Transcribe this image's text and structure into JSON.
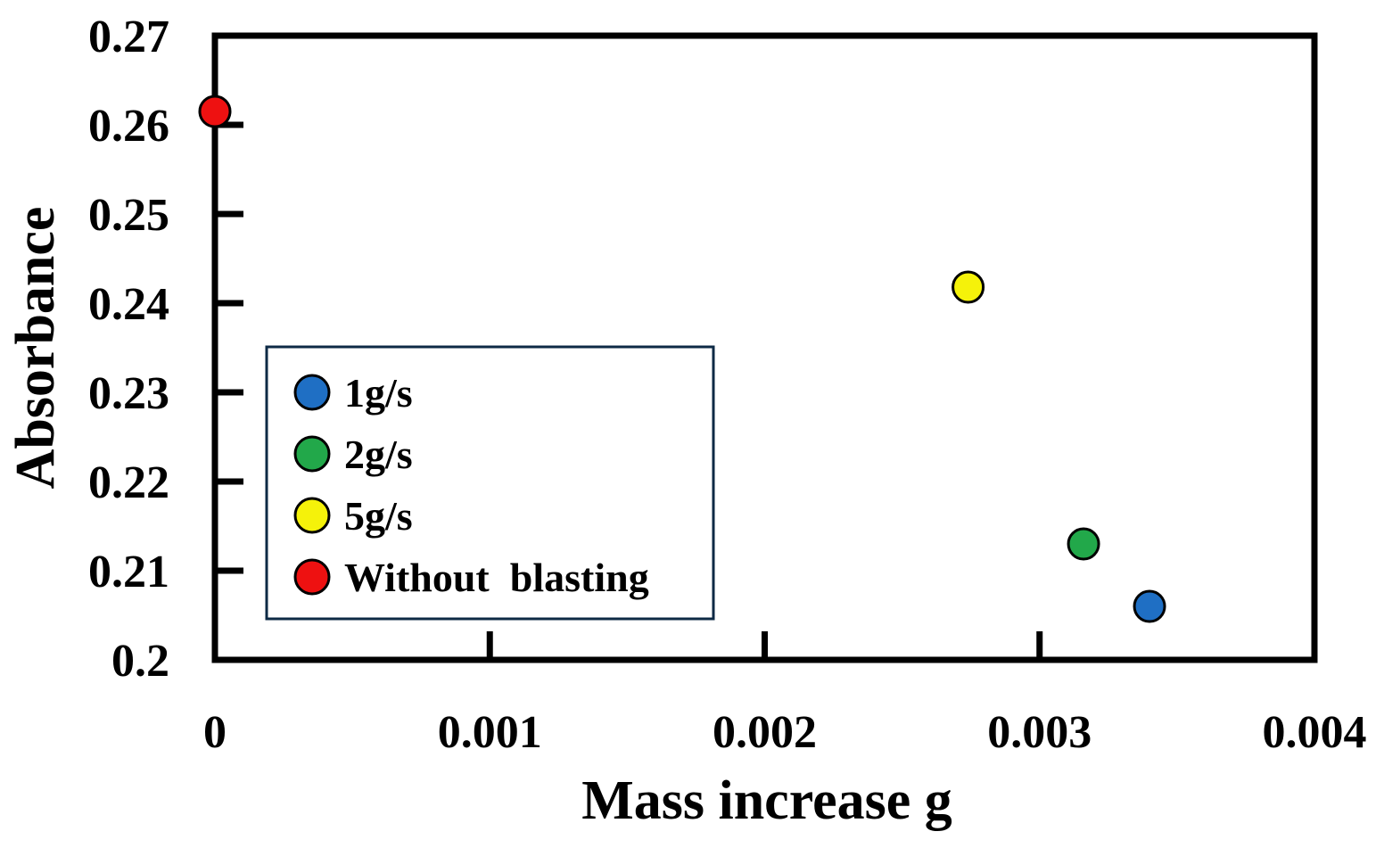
{
  "chart_data": {
    "type": "scatter",
    "xlabel": "Mass increase   g",
    "ylabel": "Absorbance",
    "xlim": [
      0,
      0.004
    ],
    "ylim": [
      0.2,
      0.27
    ],
    "x_ticks": [
      "0",
      "0.001",
      "0.002",
      "0.003",
      "0.004"
    ],
    "y_ticks": [
      "0.2",
      "0.21",
      "0.22",
      "0.23",
      "0.24",
      "0.25",
      "0.26",
      "0.27"
    ],
    "legend_position": "lower-left",
    "series": [
      {
        "name": "1g/s",
        "color": "#1f6fc4",
        "x": [
          0.0034
        ],
        "y": [
          0.206
        ]
      },
      {
        "name": "2g/s",
        "color": "#22a84a",
        "x": [
          0.00316
        ],
        "y": [
          0.213
        ]
      },
      {
        "name": "5g/s",
        "color": "#f5f20a",
        "x": [
          0.00274
        ],
        "y": [
          0.2418
        ]
      },
      {
        "name": "Without  blasting",
        "color": "#ee1111",
        "x": [
          0.0
        ],
        "y": [
          0.2615
        ]
      }
    ]
  }
}
